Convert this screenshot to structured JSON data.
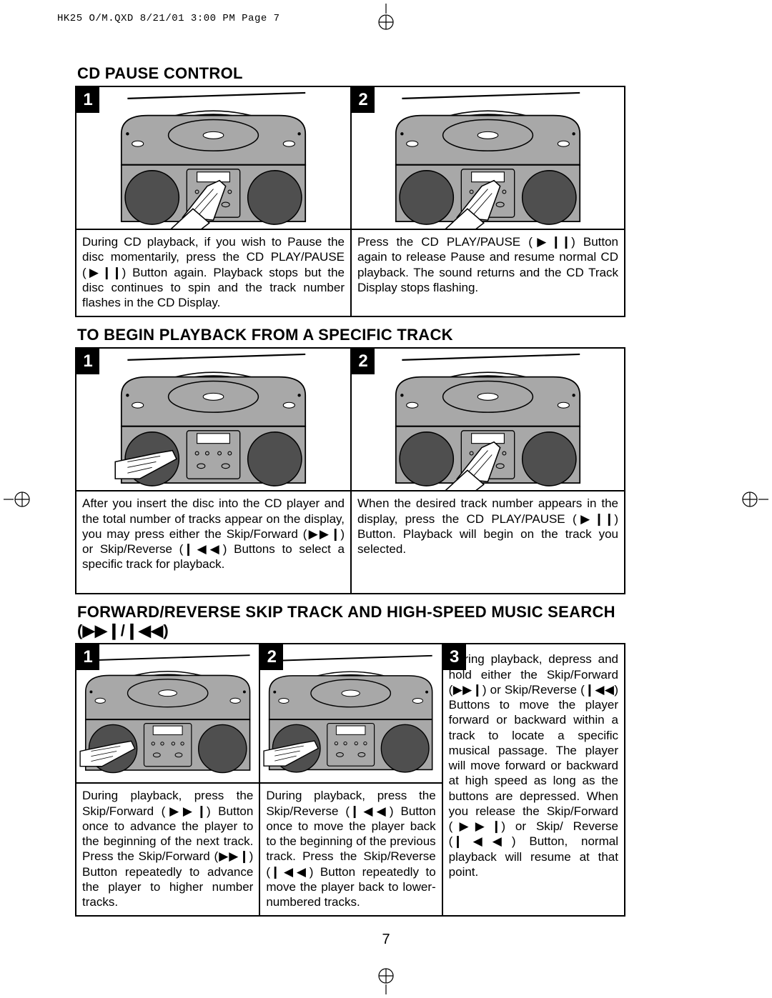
{
  "header": {
    "slug": "HK25 O/M.QXD  8/21/01  3:00 PM  Page 7"
  },
  "page_number": "7",
  "sections": [
    {
      "heading": "CD PAUSE CONTROL",
      "cols": 2,
      "steps": [
        {
          "num": "1",
          "text": "During CD playback, if you wish to Pause the disc momentarily, press the CD PLAY/PAUSE (▶❙❙) Button again. Playback stops but the disc continues to spin and the track number flashes in the CD Display."
        },
        {
          "num": "2",
          "text": "Press the CD PLAY/PAUSE (▶❙❙) Button again to release Pause and resume normal CD playback. The sound returns and the CD Track Display stops flashing."
        }
      ]
    },
    {
      "heading": "TO BEGIN PLAYBACK FROM A SPECIFIC TRACK",
      "cols": 2,
      "steps": [
        {
          "num": "1",
          "text": "After you insert the disc into the CD player and the total number of tracks appear on the display, you may press either the Skip/Forward (▶▶❙) or Skip/Reverse (❙◀◀) Buttons to select a specific track for playback."
        },
        {
          "num": "2",
          "text": "When the desired track number appears in the display, press the CD PLAY/PAUSE (▶❙❙) Button. Playback will begin on the track you selected."
        }
      ]
    },
    {
      "heading": "FORWARD/REVERSE SKIP TRACK AND HIGH-SPEED MUSIC SEARCH (▶▶❙/❙◀◀)",
      "cols": 3,
      "steps": [
        {
          "num": "1",
          "text": "During playback, press the Skip/Forward (▶▶❙) Button once to advance the player to the beginning of the next track. Press the Skip/Forward (▶▶❙) Button repeatedly to advance the player to higher number tracks."
        },
        {
          "num": "2",
          "text": "During playback, press the Skip/Reverse (❙◀◀) Button once to move the player back to the beginning of the previous track. Press the Skip/Reverse (❙◀◀) Button repeatedly to move the player back to lower-numbered tracks."
        },
        {
          "num": "3",
          "no_illus": true,
          "text": "During playback, depress and hold either the Skip/Forward (▶▶❙) or Skip/Reverse (❙◀◀) Buttons to move the player forward or backward within a track to locate a specific musical passage. The player will move forward or backward at high speed as long as the buttons are depressed. When you release the Skip/Forward (▶▶❙) or Skip/ Reverse (❙◀◀) Button, normal playback will resume at that point."
        }
      ]
    }
  ],
  "illustration": {
    "body_fill": "#a8a8a8",
    "dark_fill": "#4f4f4f",
    "stroke": "#000000"
  }
}
